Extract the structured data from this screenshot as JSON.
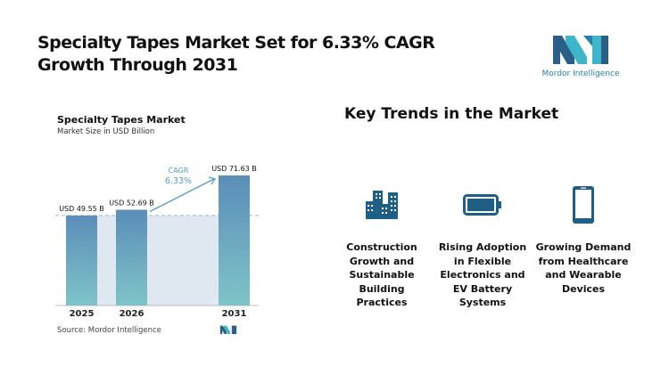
{
  "title": "Specialty Tapes Market Set for 6.33% CAGR Growth Through 2031",
  "logo": {
    "text": "Mordor Intelligence"
  },
  "chart_data": {
    "type": "bar",
    "title": "Specialty Tapes Market",
    "subtitle": "Market Size in USD Billion",
    "categories": [
      "2025",
      "2026",
      "2031"
    ],
    "values": [
      49.55,
      52.69,
      71.63
    ],
    "data_labels": [
      "USD 49.55 B",
      "USD 52.69 B",
      "USD 71.63 B"
    ],
    "annotation": {
      "label": "CAGR",
      "value": "6.33%"
    },
    "ylim": [
      0,
      80
    ],
    "grid": false,
    "colors": {
      "bar_top": "#5b8db8",
      "bar_bottom": "#7ec4c8",
      "shade": "#dfe8f1",
      "annotation": "#5b9ac4"
    }
  },
  "source": "Source:  Mordor Intelligence",
  "trends": {
    "title": "Key Trends in the Market",
    "items": [
      {
        "icon": "buildings-icon",
        "label": "Construction Growth and Sustainable Building Practices"
      },
      {
        "icon": "battery-icon",
        "label": "Rising Adoption in Flexible Electronics and EV Battery Systems"
      },
      {
        "icon": "smartphone-icon",
        "label": "Growing Demand from Healthcare and Wearable Devices"
      }
    ],
    "icon_color": "#1f5f85"
  }
}
